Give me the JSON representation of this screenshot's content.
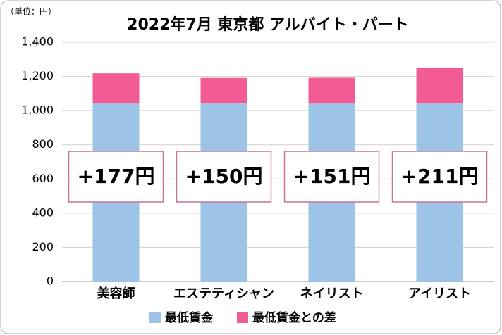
{
  "chart_data": {
    "type": "stacked-bar",
    "title": "2022年7月 東京都 アルバイト・パート",
    "unit_label": "（単位：円）",
    "categories": [
      "美容師",
      "エステティシャン",
      "ネイリスト",
      "アイリスト"
    ],
    "series": [
      {
        "name": "最低賃金",
        "color": "#9dc3e6",
        "values": [
          1041,
          1041,
          1041,
          1041
        ]
      },
      {
        "name": "最低賃金との差",
        "color": "#f25b93",
        "values": [
          177,
          150,
          151,
          211
        ],
        "value_labels": [
          "+177円",
          "+150円",
          "+151円",
          "+211円"
        ]
      }
    ],
    "ylim": [
      0,
      1400
    ],
    "yticks": [
      0,
      200,
      400,
      600,
      800,
      {
        "value": 1000,
        "label": "1,000"
      },
      {
        "value": 1200,
        "label": "1,200"
      },
      {
        "value": 1400,
        "label": "1,400"
      }
    ],
    "grid": true,
    "legend": "bottom"
  }
}
